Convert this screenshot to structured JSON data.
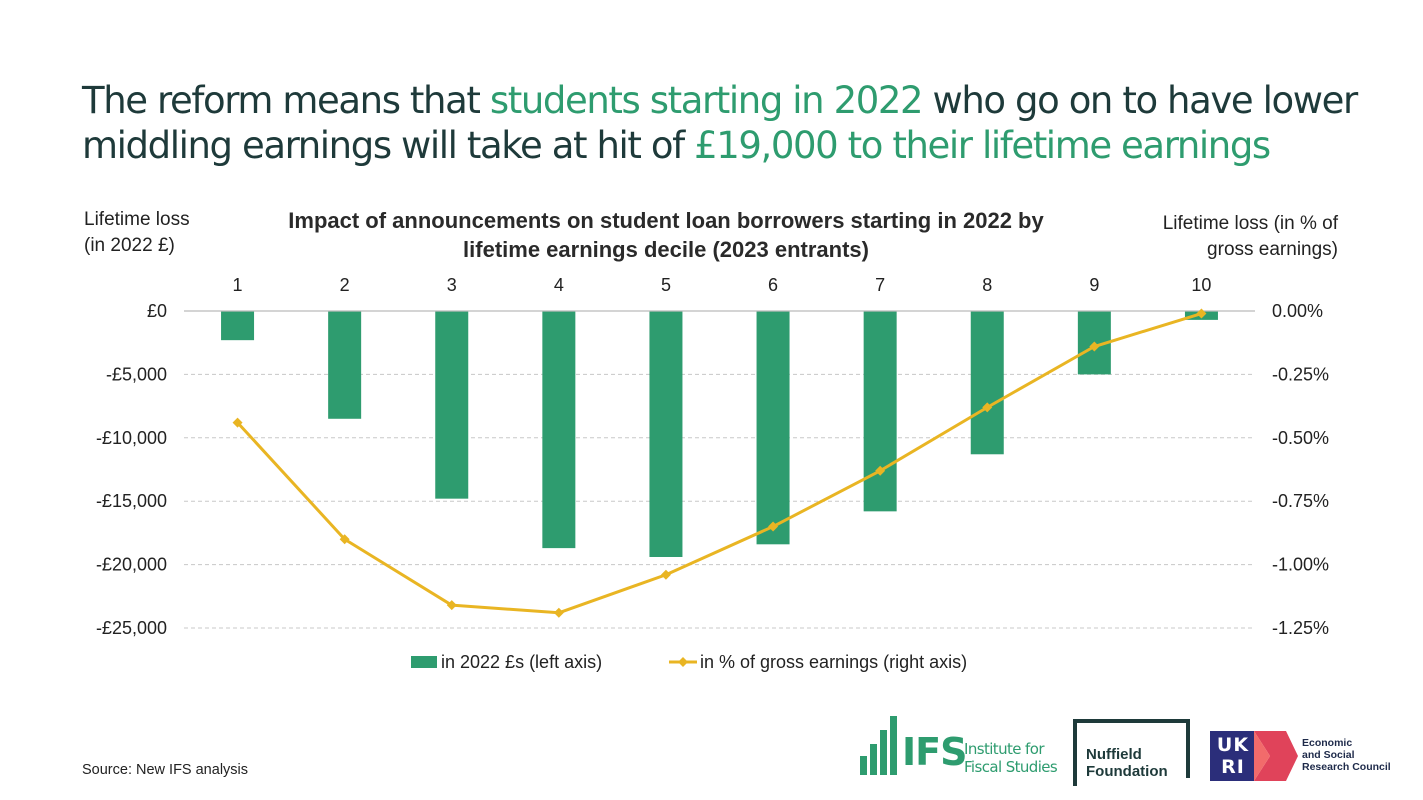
{
  "headline": {
    "part1": "The reform means that ",
    "part2": "students starting in 2022",
    "part3": " who go on to have lower middling earnings will take at hit of ",
    "part4": "£19,000 to their lifetime earnings"
  },
  "colors": {
    "bar": "#2e9c6f",
    "line": "#e9b523",
    "headline_text": "#1e3a3a",
    "highlight": "#2e9c6f",
    "grid": "#c8c8c8"
  },
  "chart_data": {
    "type": "bar",
    "title": "Impact of announcements on student loan borrowers starting in 2022 by lifetime earnings decile (2023 entrants)",
    "left_axis_title_line1": "Lifetime loss",
    "left_axis_title_line2": "(in 2022 £)",
    "right_axis_title_line1": "Lifetime loss (in % of",
    "right_axis_title_line2": "gross earnings)",
    "categories": [
      "1",
      "2",
      "3",
      "4",
      "5",
      "6",
      "7",
      "8",
      "9",
      "10"
    ],
    "left_ylim": [
      -25000,
      0
    ],
    "right_ylim": [
      -1.25,
      0
    ],
    "left_ticks": [
      {
        "value": 0,
        "label": "£0"
      },
      {
        "value": -5000,
        "label": "-£5,000"
      },
      {
        "value": -10000,
        "label": "-£10,000"
      },
      {
        "value": -15000,
        "label": "-£15,000"
      },
      {
        "value": -20000,
        "label": "-£20,000"
      },
      {
        "value": -25000,
        "label": "-£25,000"
      }
    ],
    "right_ticks": [
      {
        "value": 0,
        "label": "0.00%"
      },
      {
        "value": -0.25,
        "label": "-0.25%"
      },
      {
        "value": -0.5,
        "label": "-0.50%"
      },
      {
        "value": -0.75,
        "label": "-0.75%"
      },
      {
        "value": -1.0,
        "label": "-1.00%"
      },
      {
        "value": -1.25,
        "label": "-1.25%"
      }
    ],
    "grid": true,
    "legend_position": "bottom",
    "series": [
      {
        "name": "in 2022 £s (left axis)",
        "type": "bar",
        "axis": "left",
        "values": [
          -2300,
          -8500,
          -14800,
          -18700,
          -19400,
          -18400,
          -15800,
          -11300,
          -5000,
          -700
        ]
      },
      {
        "name": "in % of gross earnings (right axis)",
        "type": "line",
        "axis": "right",
        "values": [
          -0.44,
          -0.9,
          -1.16,
          -1.19,
          -1.04,
          -0.85,
          -0.63,
          -0.38,
          -0.14,
          -0.01
        ]
      }
    ]
  },
  "source": "Source: New IFS analysis",
  "logos": {
    "ifs_abbrev": "IFS",
    "ifs_name_line1": "Institute for",
    "ifs_name_line2": "Fiscal Studies",
    "nuffield_line1": "Nuffield",
    "nuffield_line2": "Foundation",
    "ukri_letters": "UKRI",
    "esrc_line1": "Economic",
    "esrc_line2": "and Social",
    "esrc_line3": "Research Council"
  }
}
